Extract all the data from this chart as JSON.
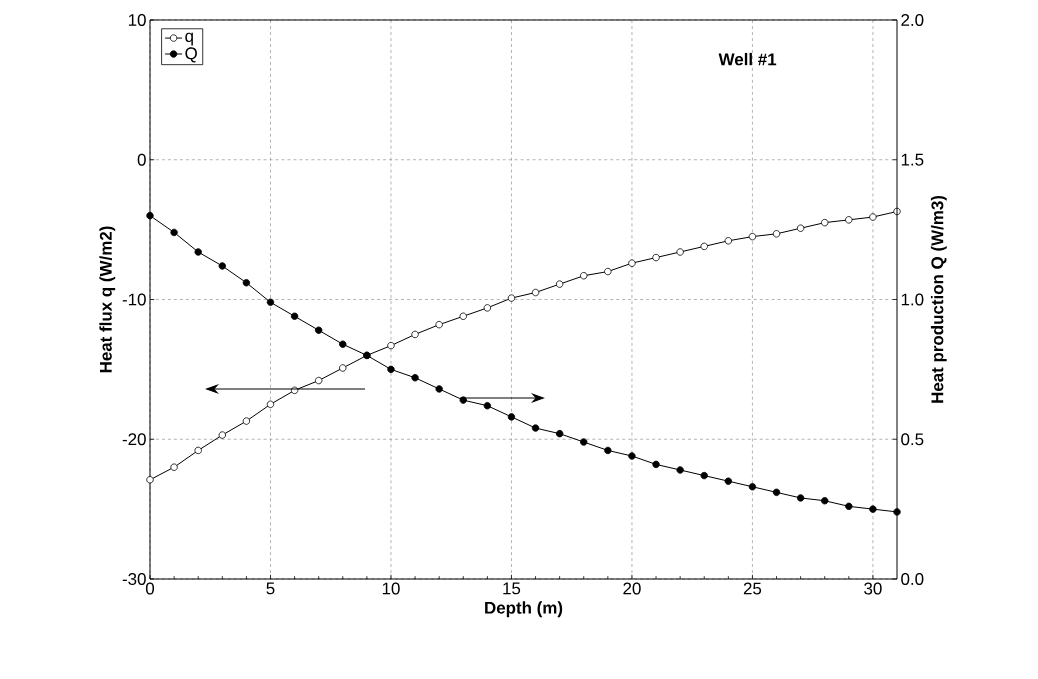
{
  "chart_data": {
    "type": "line",
    "xlabel": "Depth  (m)",
    "ylabel": "Heat flux q  (W/m2)",
    "y2label": "Heat production Q  (W/m3)",
    "annotations": [
      "Well  #1"
    ],
    "x": [
      0,
      1,
      2,
      3,
      4,
      5,
      6,
      7,
      8,
      9,
      10,
      11,
      12,
      13,
      14,
      15,
      16,
      17,
      18,
      19,
      20,
      21,
      22,
      23,
      24,
      25,
      26,
      27,
      28,
      29,
      30,
      31
    ],
    "series": [
      {
        "name": "q",
        "color": "#000000",
        "axis": "y",
        "values": [
          -22.9,
          -22.0,
          -20.8,
          -19.7,
          -18.7,
          -17.5,
          -16.5,
          -15.8,
          -14.9,
          -14.0,
          -13.3,
          -12.5,
          -11.8,
          -11.2,
          -10.6,
          -9.9,
          -9.5,
          -8.9,
          -8.3,
          -8.0,
          -7.4,
          -7.0,
          -6.6,
          -6.2,
          -5.8,
          -5.5,
          -5.3,
          -4.9,
          -4.5,
          -4.3,
          -4.1,
          -3.7
        ]
      },
      {
        "name": "Q",
        "color": "#000000",
        "axis": "y2",
        "values": [
          1.3,
          1.24,
          1.17,
          1.12,
          1.06,
          0.99,
          0.94,
          0.89,
          0.84,
          0.8,
          0.75,
          0.72,
          0.68,
          0.64,
          0.62,
          0.58,
          0.54,
          0.52,
          0.49,
          0.46,
          0.44,
          0.41,
          0.39,
          0.37,
          0.35,
          0.33,
          0.31,
          0.29,
          0.28,
          0.26,
          0.25,
          0.24
        ]
      }
    ],
    "xlim": [
      0,
      31
    ],
    "xticks": [
      0,
      5,
      10,
      15,
      20,
      25,
      30
    ],
    "ylim": [
      -30,
      10
    ],
    "yticks": [
      -30,
      -20,
      -10,
      0,
      10
    ],
    "y2lim": [
      0,
      2
    ],
    "y2ticks": [
      {
        "value": 0,
        "label": "0.0"
      },
      {
        "value": 0.5,
        "label": "0.5"
      },
      {
        "value": 1,
        "label": "1.0"
      },
      {
        "value": 1.5,
        "label": "1.5"
      },
      {
        "value": 2,
        "label": "2.0"
      }
    ],
    "grid": true,
    "legend": "top left",
    "marker": "circle",
    "line_style": "solid"
  }
}
